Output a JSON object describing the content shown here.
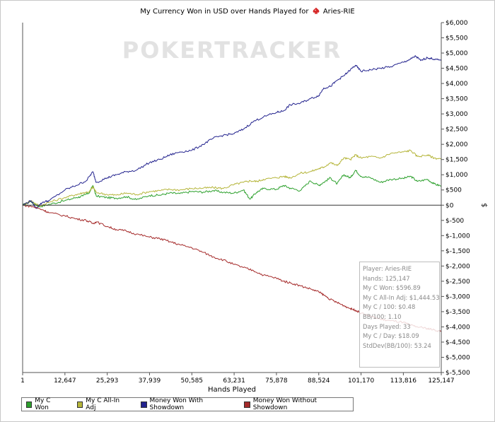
{
  "title_prefix": "My Currency Won in USD over Hands Played for",
  "player_name": "Aries-RIE",
  "watermark": "POKERTRACKER",
  "chart_data": {
    "type": "line",
    "xlabel": "Hands Played",
    "ylabel": "$",
    "xlim": [
      1,
      125147
    ],
    "ylim": [
      -5500,
      6000
    ],
    "x_ticks": [
      1,
      12647,
      25293,
      37939,
      50585,
      63231,
      75878,
      88524,
      101170,
      113816,
      125147
    ],
    "x_tick_labels": [
      "1",
      "12,647",
      "25,293",
      "37,939",
      "50,585",
      "63,231",
      "75,878",
      "88,524",
      "101,170",
      "113,816",
      "125,147"
    ],
    "y_ticks": [
      6000,
      5500,
      5000,
      4500,
      4000,
      3500,
      3000,
      2500,
      2000,
      1500,
      1000,
      500,
      0,
      -500,
      -1000,
      -1500,
      -2000,
      -2500,
      -3000,
      -3500,
      -4000,
      -4500,
      -5000,
      -5500
    ],
    "y_tick_labels": [
      "$6,000",
      "$5,500",
      "$5,000",
      "$4,500",
      "$4,000",
      "$3,500",
      "$3,000",
      "$2,500",
      "$2,000",
      "$1,500",
      "$1,000",
      "$500",
      "$0",
      "$-500",
      "$-1,000",
      "$-1,500",
      "$-2,000",
      "$-2,500",
      "$-3,000",
      "$-3,500",
      "$-4,000",
      "$-4,500",
      "$-5,000",
      "$-5,500"
    ],
    "zero_line": true,
    "legend_position": "bottom-left",
    "series": [
      {
        "name": "My C Won",
        "color": "#2ca02c",
        "points": [
          [
            1,
            0
          ],
          [
            2500,
            120
          ],
          [
            5000,
            -50
          ],
          [
            8000,
            30
          ],
          [
            12647,
            150
          ],
          [
            16000,
            250
          ],
          [
            18000,
            300
          ],
          [
            20000,
            420
          ],
          [
            21000,
            650
          ],
          [
            22000,
            300
          ],
          [
            25293,
            250
          ],
          [
            28000,
            230
          ],
          [
            31000,
            280
          ],
          [
            34000,
            180
          ],
          [
            37939,
            320
          ],
          [
            41000,
            330
          ],
          [
            44000,
            400
          ],
          [
            47000,
            380
          ],
          [
            50585,
            450
          ],
          [
            54000,
            430
          ],
          [
            57000,
            480
          ],
          [
            60000,
            420
          ],
          [
            63231,
            400
          ],
          [
            66000,
            500
          ],
          [
            68000,
            200
          ],
          [
            70000,
            430
          ],
          [
            72000,
            550
          ],
          [
            75878,
            520
          ],
          [
            78000,
            650
          ],
          [
            80000,
            560
          ],
          [
            83000,
            480
          ],
          [
            86000,
            800
          ],
          [
            88524,
            650
          ],
          [
            90000,
            750
          ],
          [
            92000,
            900
          ],
          [
            94000,
            700
          ],
          [
            96000,
            1000
          ],
          [
            98000,
            900
          ],
          [
            99500,
            1150
          ],
          [
            101170,
            950
          ],
          [
            104000,
            900
          ],
          [
            107000,
            750
          ],
          [
            110000,
            850
          ],
          [
            113816,
            880
          ],
          [
            116000,
            950
          ],
          [
            118000,
            780
          ],
          [
            121000,
            850
          ],
          [
            123000,
            700
          ],
          [
            125147,
            630
          ]
        ]
      },
      {
        "name": "My C All-In Adj",
        "color": "#b5b53a",
        "points": [
          [
            1,
            0
          ],
          [
            2500,
            150
          ],
          [
            5000,
            -30
          ],
          [
            8000,
            100
          ],
          [
            12647,
            250
          ],
          [
            16000,
            350
          ],
          [
            18000,
            400
          ],
          [
            20000,
            450
          ],
          [
            21000,
            600
          ],
          [
            22000,
            420
          ],
          [
            25293,
            350
          ],
          [
            28000,
            330
          ],
          [
            31000,
            400
          ],
          [
            34000,
            350
          ],
          [
            37939,
            450
          ],
          [
            41000,
            480
          ],
          [
            44000,
            520
          ],
          [
            47000,
            500
          ],
          [
            50585,
            550
          ],
          [
            54000,
            560
          ],
          [
            57000,
            580
          ],
          [
            60000,
            550
          ],
          [
            63231,
            680
          ],
          [
            66000,
            750
          ],
          [
            68000,
            800
          ],
          [
            70000,
            780
          ],
          [
            72000,
            850
          ],
          [
            75878,
            900
          ],
          [
            78000,
            950
          ],
          [
            80000,
            900
          ],
          [
            83000,
            1050
          ],
          [
            86000,
            1100
          ],
          [
            88524,
            1200
          ],
          [
            90000,
            1250
          ],
          [
            92000,
            1400
          ],
          [
            94000,
            1300
          ],
          [
            96000,
            1550
          ],
          [
            98000,
            1500
          ],
          [
            99500,
            1650
          ],
          [
            101170,
            1550
          ],
          [
            104000,
            1600
          ],
          [
            107000,
            1550
          ],
          [
            110000,
            1700
          ],
          [
            113816,
            1750
          ],
          [
            116000,
            1800
          ],
          [
            118000,
            1600
          ],
          [
            121000,
            1650
          ],
          [
            123000,
            1550
          ],
          [
            125147,
            1520
          ]
        ]
      },
      {
        "name": "Money Won With Showdown",
        "color": "#23238e",
        "points": [
          [
            1,
            0
          ],
          [
            2500,
            150
          ],
          [
            4000,
            -100
          ],
          [
            6000,
            100
          ],
          [
            8000,
            150
          ],
          [
            12647,
            500
          ],
          [
            16000,
            650
          ],
          [
            19000,
            800
          ],
          [
            21000,
            1100
          ],
          [
            22000,
            750
          ],
          [
            25293,
            900
          ],
          [
            28000,
            1000
          ],
          [
            31000,
            1100
          ],
          [
            34000,
            1150
          ],
          [
            37939,
            1400
          ],
          [
            41000,
            1500
          ],
          [
            44000,
            1650
          ],
          [
            47000,
            1750
          ],
          [
            50585,
            1800
          ],
          [
            54000,
            2000
          ],
          [
            57000,
            2200
          ],
          [
            60000,
            2300
          ],
          [
            63231,
            2350
          ],
          [
            66000,
            2500
          ],
          [
            69000,
            2750
          ],
          [
            72000,
            2900
          ],
          [
            75878,
            3050
          ],
          [
            78000,
            3100
          ],
          [
            80000,
            3300
          ],
          [
            83000,
            3350
          ],
          [
            86000,
            3500
          ],
          [
            88524,
            3600
          ],
          [
            90000,
            3850
          ],
          [
            92000,
            3900
          ],
          [
            94000,
            4100
          ],
          [
            96000,
            4250
          ],
          [
            98000,
            4450
          ],
          [
            99500,
            4600
          ],
          [
            101170,
            4400
          ],
          [
            104000,
            4450
          ],
          [
            107000,
            4500
          ],
          [
            110000,
            4550
          ],
          [
            113816,
            4700
          ],
          [
            116000,
            4800
          ],
          [
            117500,
            4900
          ],
          [
            119000,
            4750
          ],
          [
            121000,
            4850
          ],
          [
            123000,
            4800
          ],
          [
            125147,
            4750
          ]
        ]
      },
      {
        "name": "Money Won Without Showdown",
        "color": "#a52a2a",
        "points": [
          [
            1,
            0
          ],
          [
            3000,
            -50
          ],
          [
            6000,
            -150
          ],
          [
            8000,
            -250
          ],
          [
            12647,
            -350
          ],
          [
            16000,
            -450
          ],
          [
            19000,
            -500
          ],
          [
            21000,
            -600
          ],
          [
            22000,
            -550
          ],
          [
            25293,
            -700
          ],
          [
            28000,
            -800
          ],
          [
            31000,
            -850
          ],
          [
            34000,
            -950
          ],
          [
            37939,
            -1050
          ],
          [
            41000,
            -1100
          ],
          [
            44000,
            -1200
          ],
          [
            47000,
            -1300
          ],
          [
            50585,
            -1400
          ],
          [
            54000,
            -1550
          ],
          [
            57000,
            -1700
          ],
          [
            60000,
            -1800
          ],
          [
            63231,
            -1950
          ],
          [
            66000,
            -2050
          ],
          [
            69000,
            -2150
          ],
          [
            72000,
            -2300
          ],
          [
            75878,
            -2400
          ],
          [
            78000,
            -2500
          ],
          [
            80000,
            -2550
          ],
          [
            83000,
            -2650
          ],
          [
            86000,
            -2750
          ],
          [
            88524,
            -2850
          ],
          [
            90000,
            -2950
          ],
          [
            92000,
            -3100
          ],
          [
            94000,
            -3200
          ],
          [
            96000,
            -3300
          ],
          [
            98000,
            -3400
          ],
          [
            99500,
            -3450
          ],
          [
            101170,
            -3550
          ],
          [
            104000,
            -3650
          ],
          [
            107000,
            -3750
          ],
          [
            110000,
            -3800
          ],
          [
            113816,
            -3850
          ],
          [
            116000,
            -3950
          ],
          [
            118000,
            -4000
          ],
          [
            121000,
            -4050
          ],
          [
            123000,
            -4100
          ],
          [
            125147,
            -4150
          ]
        ]
      }
    ]
  },
  "stats": [
    "Player: Aries-RIE",
    "Hands: 125,147",
    "My C Won: $596.89",
    "My C All-In Adj: $1,444.53",
    "My C / 100: $0.48",
    "BB/100: 1.10",
    "Days Played: 33",
    "My C / Day: $18.09",
    "StdDev(BB/100): 53.24"
  ]
}
